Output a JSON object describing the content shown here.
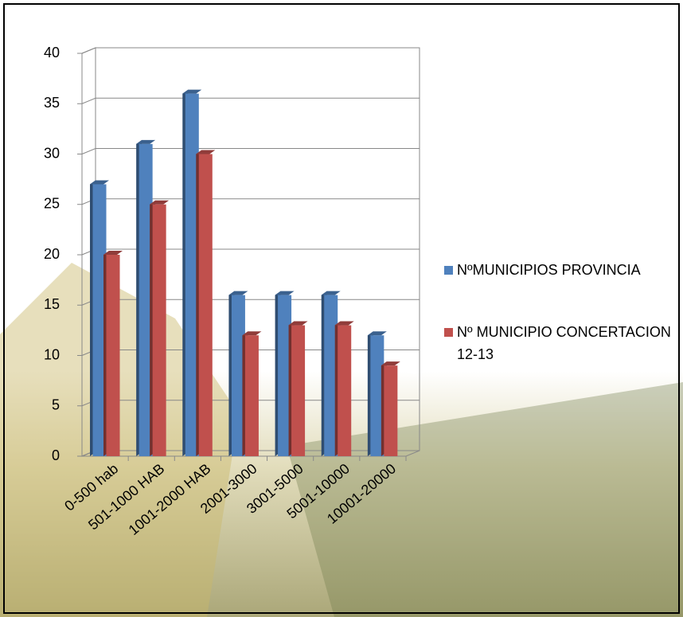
{
  "chart_data": {
    "type": "bar",
    "categories": [
      "0-500 hab",
      "501-1000 HAB",
      "1001-2000 HAB",
      "2001-3000",
      "3001-5000",
      "5001-10000",
      "10001-20000"
    ],
    "series": [
      {
        "name": " NºMUNICIPIOS PROVINCIA",
        "color": "#4f81bd",
        "values": [
          27,
          31,
          36,
          16,
          16,
          16,
          12
        ]
      },
      {
        "name": "Nº MUNICIPIO CONCERTACION 12-13",
        "color": "#c0504d",
        "values": [
          20,
          25,
          30,
          12,
          13,
          13,
          9
        ]
      }
    ],
    "ylim": [
      0,
      40
    ],
    "yticks": [
      0,
      5,
      10,
      15,
      20,
      25,
      30,
      35,
      40
    ],
    "grid": true,
    "legend": "right"
  }
}
